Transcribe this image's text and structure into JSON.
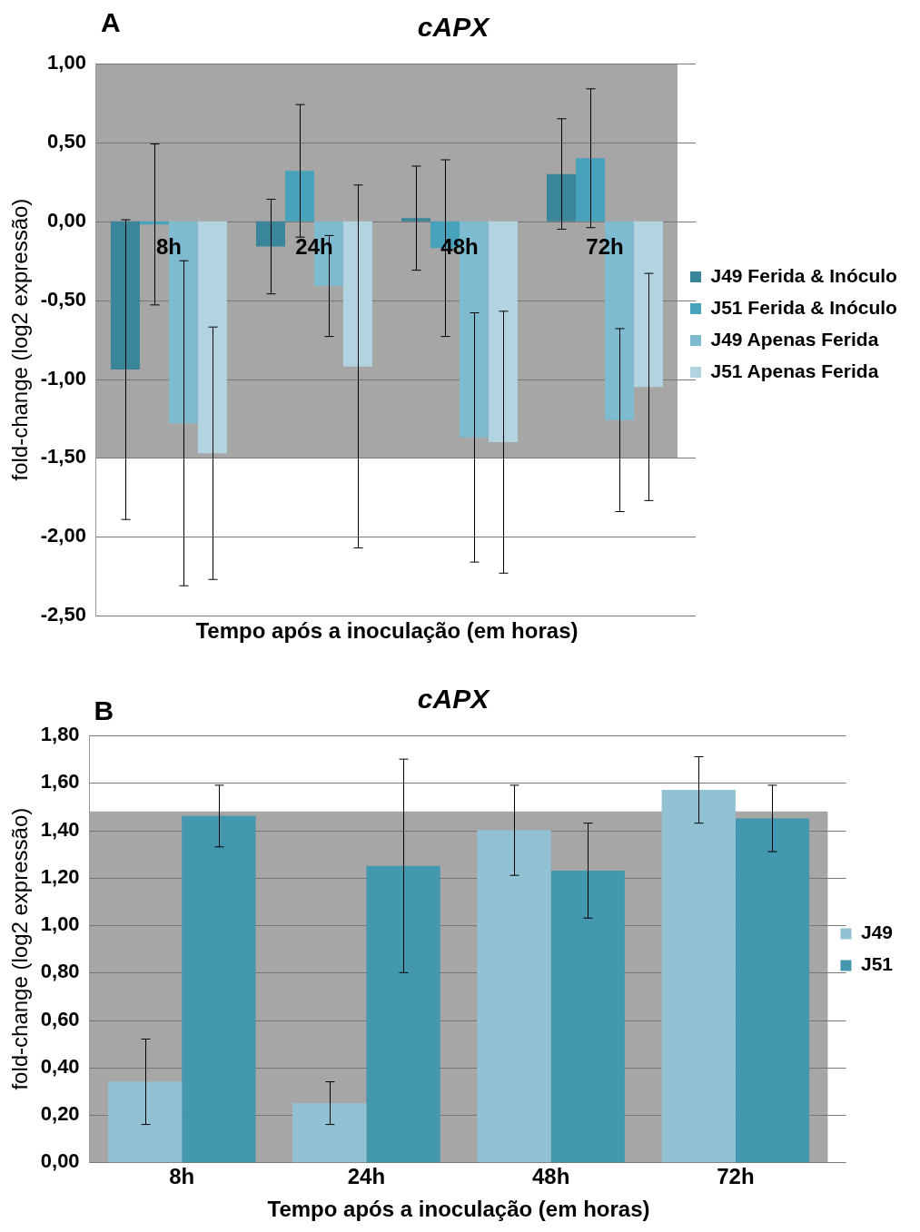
{
  "chart_data": [
    {
      "type": "bar",
      "title": "cAPX",
      "xlabel": "Tempo após a inoculação (em horas)",
      "ylabel": "fold-change (log2 expressão)",
      "annotations": [
        "A"
      ],
      "categories": [
        "8h",
        "24h",
        "48h",
        "72h"
      ],
      "series": [
        {
          "name": "J49 Ferida & Inóculo",
          "color": "#3a8599",
          "values": [
            -0.94,
            -0.16,
            0.02,
            0.3
          ],
          "errors": [
            0.95,
            0.3,
            0.33,
            0.35
          ]
        },
        {
          "name": "J51 Ferida & Inóculo",
          "color": "#47a2bc",
          "values": [
            -0.02,
            0.32,
            -0.17,
            0.4
          ],
          "errors": [
            0.51,
            0.42,
            0.56,
            0.44
          ]
        },
        {
          "name": "J49 Apenas Ferida",
          "color": "#7ebad0",
          "values": [
            -1.28,
            -0.41,
            -1.37,
            -1.26
          ],
          "errors": [
            1.03,
            0.32,
            0.79,
            0.58
          ]
        },
        {
          "name": "J51 Apenas Ferida",
          "color": "#b2d3e0",
          "values": [
            -1.47,
            -0.92,
            -1.4,
            -1.05
          ],
          "errors": [
            0.8,
            1.15,
            0.83,
            0.72
          ]
        }
      ],
      "ylim": [
        -2.5,
        1.0
      ],
      "yticks": [
        {
          "value": -2.5,
          "label": "-2,50"
        },
        {
          "value": -2,
          "label": "-2,00"
        },
        {
          "value": -1.5,
          "label": "-1,50"
        },
        {
          "value": -1,
          "label": "-1,00"
        },
        {
          "value": -0.5,
          "label": "-0,50"
        },
        {
          "value": 0,
          "label": "0,00"
        },
        {
          "value": 0.5,
          "label": "0,50"
        },
        {
          "value": 1,
          "label": "1,00"
        }
      ],
      "bands": [
        {
          "axis": "y",
          "from": -1.5,
          "to": 1.0,
          "color": "#a6a6a6"
        }
      ],
      "grid": "y",
      "legend": "right"
    },
    {
      "type": "bar",
      "title": "cAPX",
      "xlabel": "Tempo após a inoculação (em horas)",
      "ylabel": "fold-change (log2 expressão)",
      "annotations": [
        "B"
      ],
      "categories": [
        "8h",
        "24h",
        "48h",
        "72h"
      ],
      "series": [
        {
          "name": "J49",
          "color": "#92c1d3",
          "values": [
            0.34,
            0.25,
            1.4,
            1.57
          ],
          "errors": [
            0.18,
            0.09,
            0.19,
            0.14
          ]
        },
        {
          "name": "J51",
          "color": "#4398b0",
          "values": [
            1.46,
            1.25,
            1.23,
            1.45
          ],
          "errors": [
            0.13,
            0.45,
            0.2,
            0.14
          ]
        }
      ],
      "ylim": [
        0,
        1.8
      ],
      "yticks": [
        {
          "value": 0,
          "label": "0,00"
        },
        {
          "value": 0.2,
          "label": "0,20"
        },
        {
          "value": 0.4,
          "label": "0,40"
        },
        {
          "value": 0.6,
          "label": "0,60"
        },
        {
          "value": 0.8,
          "label": "0,80"
        },
        {
          "value": 1,
          "label": "1,00"
        },
        {
          "value": 1.2,
          "label": "1,20"
        },
        {
          "value": 1.4,
          "label": "1,40"
        },
        {
          "value": 1.6,
          "label": "1,60"
        },
        {
          "value": 1.8,
          "label": "1,80"
        }
      ],
      "bands": [
        {
          "axis": "y",
          "from": 0,
          "to": 1.48,
          "color": "#a6a6a6"
        }
      ],
      "grid": "y",
      "legend": "right"
    }
  ]
}
